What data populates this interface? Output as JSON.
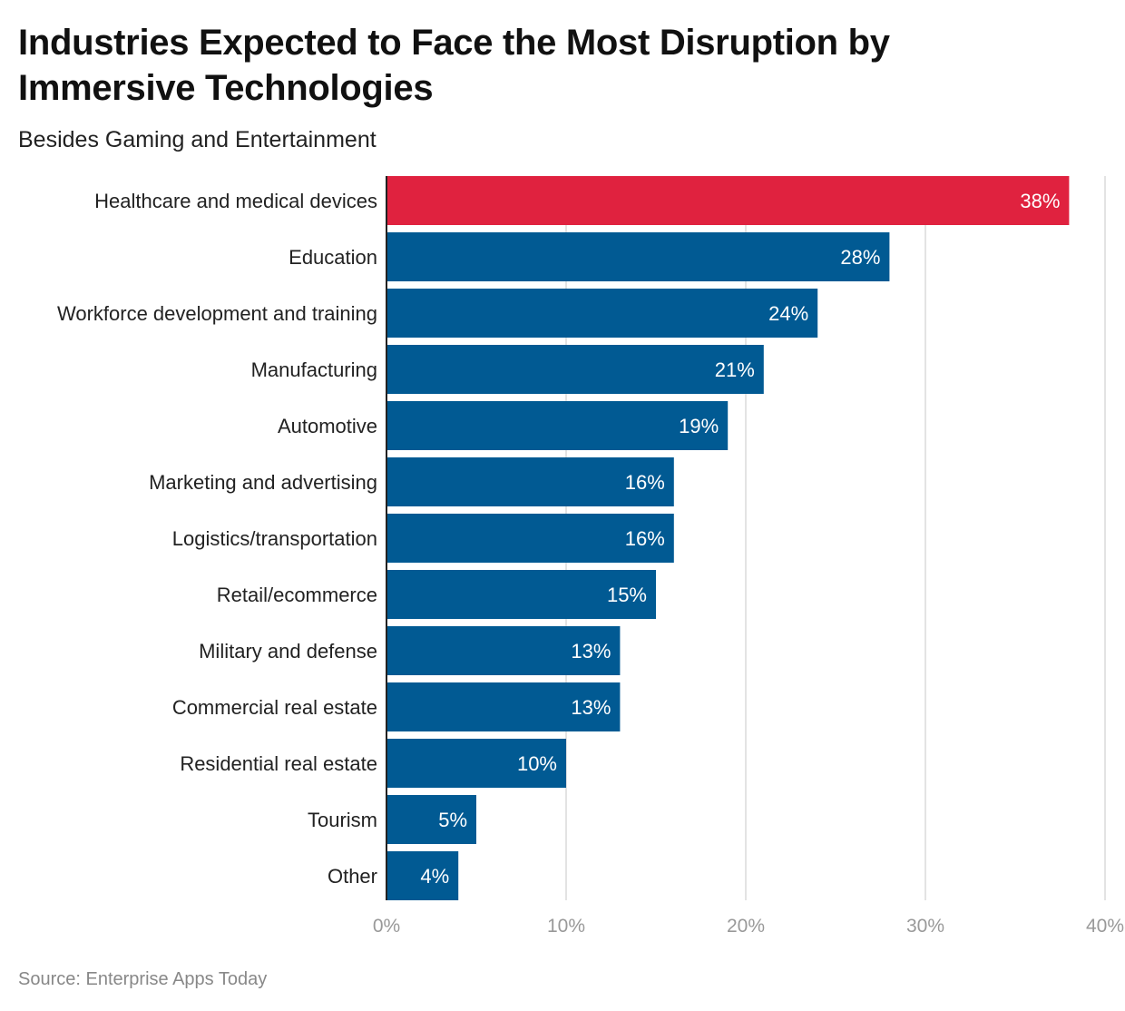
{
  "title": "Industries Expected to Face the Most Disruption by Immersive Technologies",
  "subtitle": "Besides Gaming and Entertainment",
  "source": "Source: Enterprise Apps Today",
  "colors": {
    "highlight": "#E0223F",
    "bar": "#015A93",
    "grid": "#E3E3E3",
    "axis": "#222222",
    "tick": "#999999"
  },
  "chart_data": {
    "type": "bar",
    "orientation": "horizontal",
    "categories": [
      "Healthcare and medical devices",
      "Education",
      "Workforce development and training",
      "Manufacturing",
      "Automotive",
      "Marketing and advertising",
      "Logistics/transportation",
      "Retail/ecommerce",
      "Military and defense",
      "Commercial real estate",
      "Residential real estate",
      "Tourism",
      "Other"
    ],
    "values": [
      38,
      28,
      24,
      21,
      19,
      16,
      16,
      15,
      13,
      13,
      10,
      5,
      4
    ],
    "data_labels": [
      "38%",
      "28%",
      "24%",
      "21%",
      "19%",
      "16%",
      "16%",
      "15%",
      "13%",
      "13%",
      "10%",
      "5%",
      "4%"
    ],
    "highlighted_category": "Healthcare and medical devices",
    "xlim": [
      0,
      40
    ],
    "xticks": [
      0,
      10,
      20,
      30,
      40
    ],
    "xtick_labels": [
      "0%",
      "10%",
      "20%",
      "30%",
      "40%"
    ],
    "grid": true
  }
}
